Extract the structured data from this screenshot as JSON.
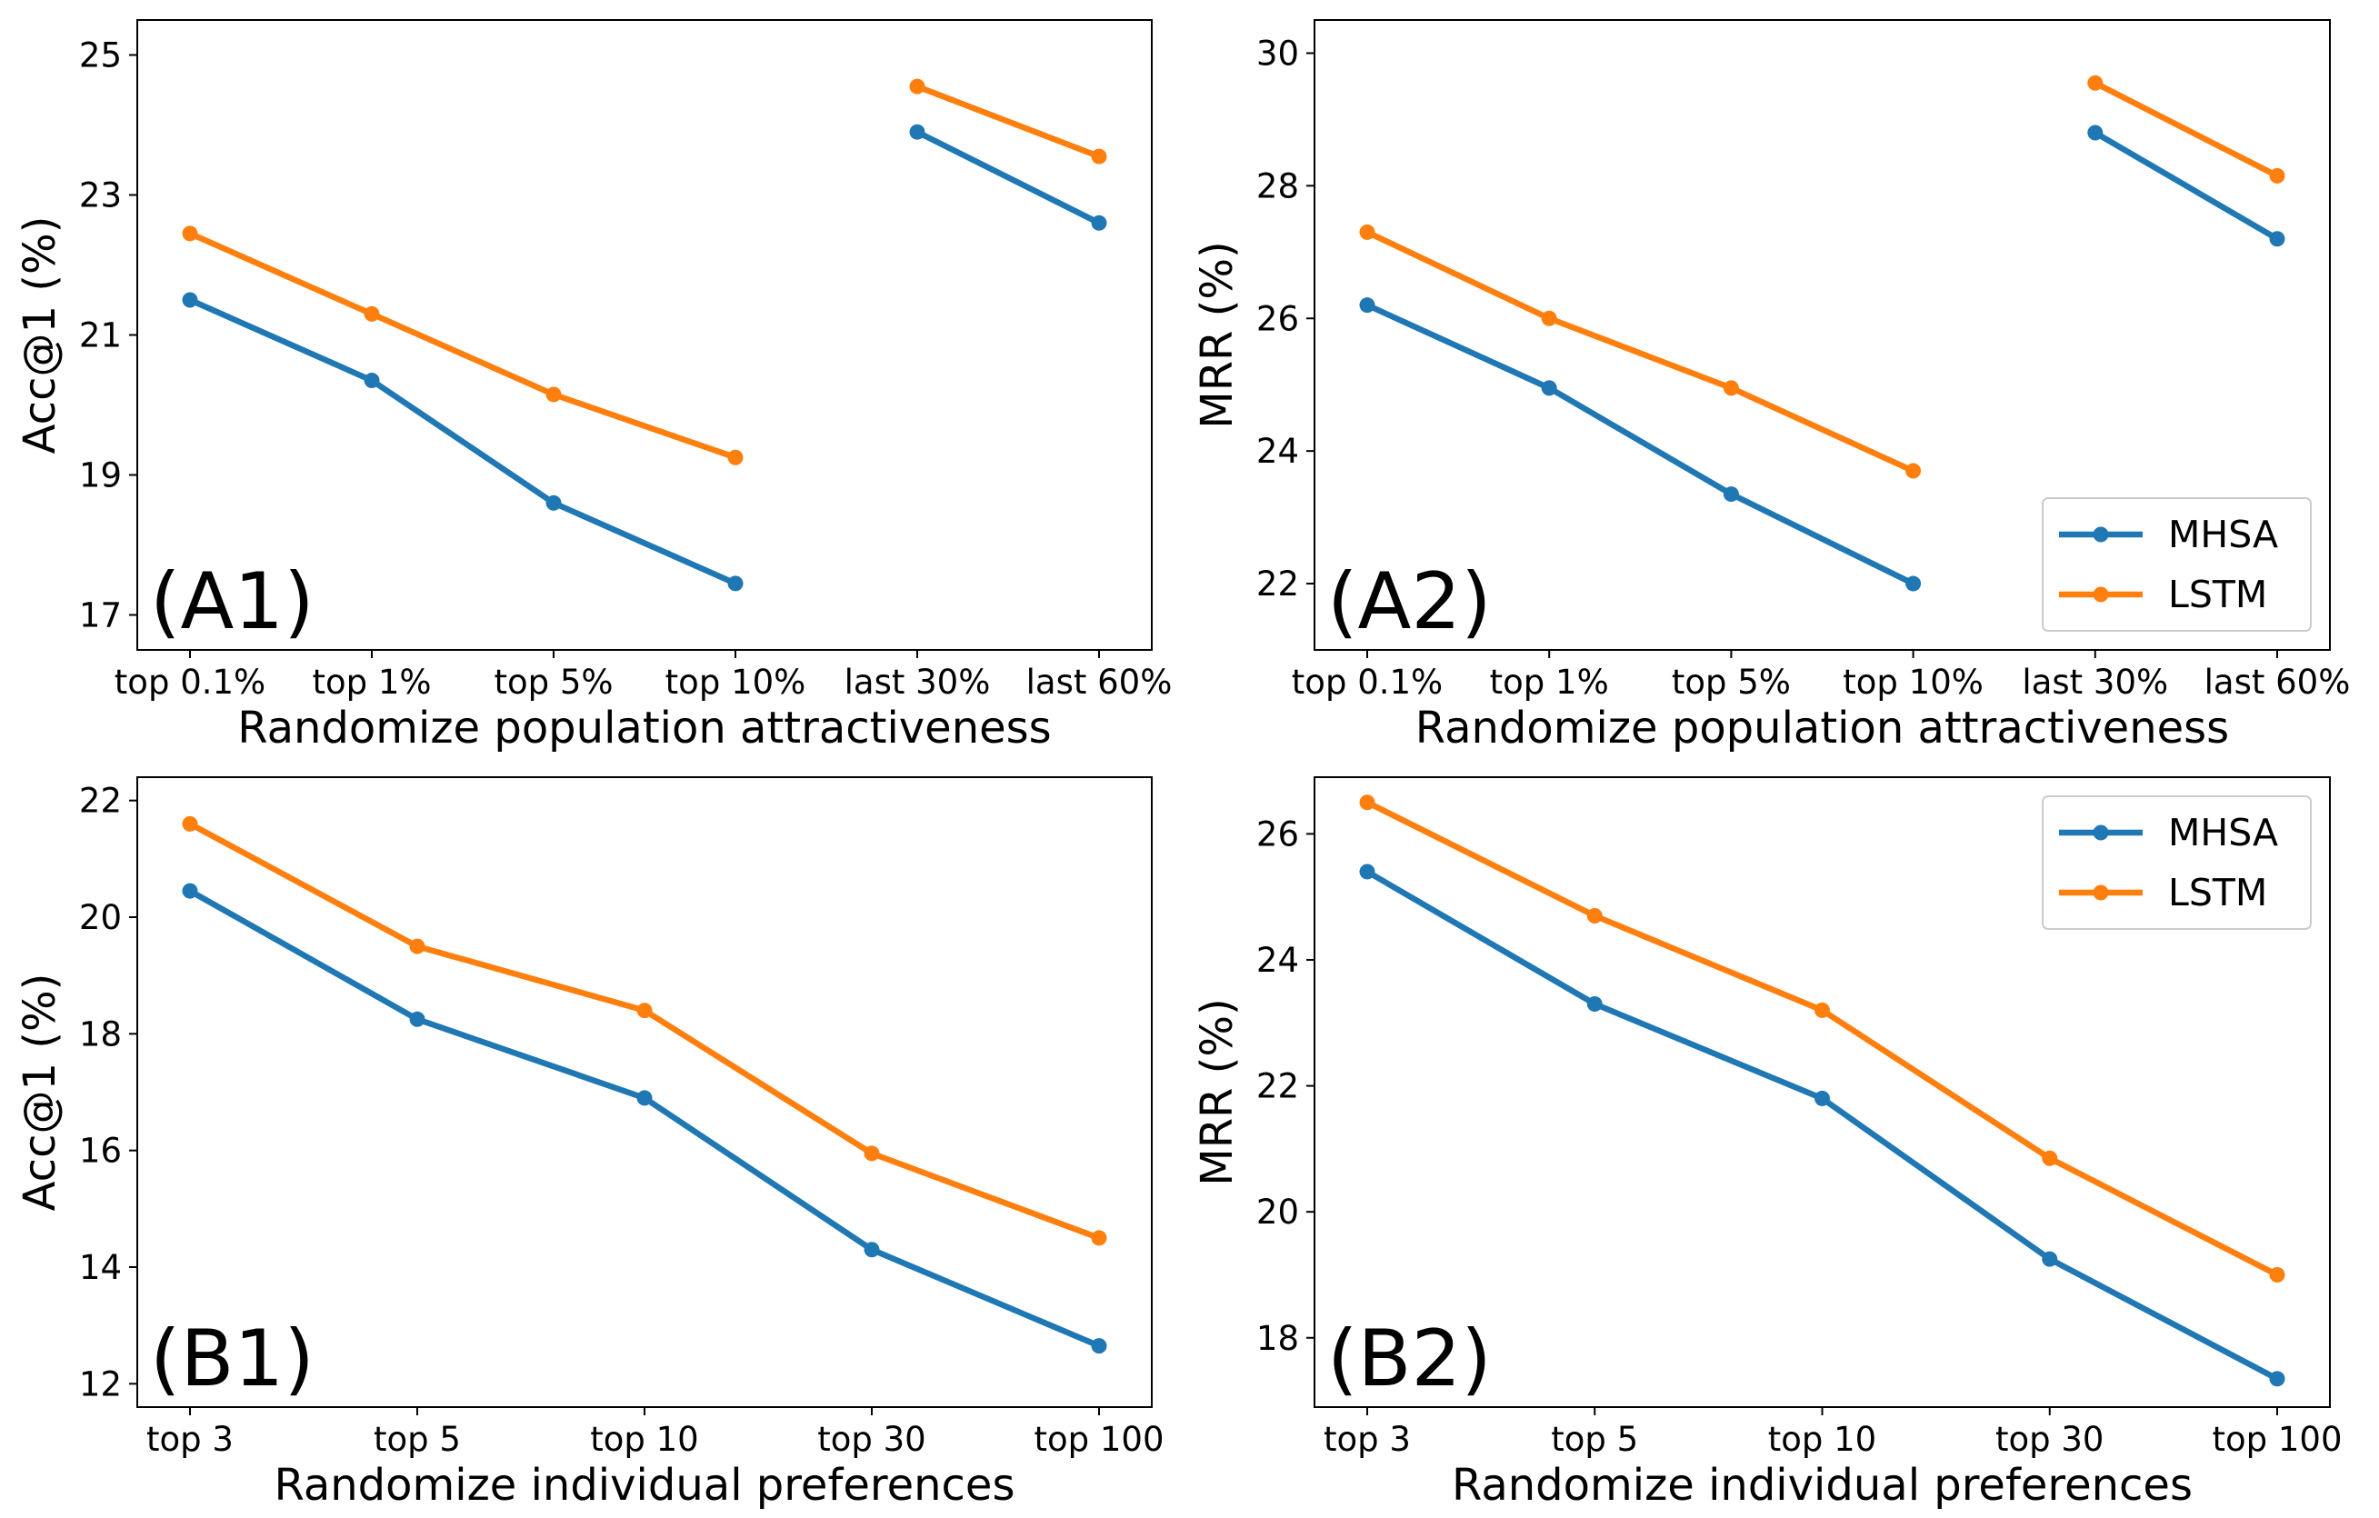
{
  "colors": {
    "mhsa": "#1f77b4",
    "lstm": "#ff7f0e",
    "axes": "#000000",
    "background": "#ffffff"
  },
  "chart_data": [
    {
      "type": "line",
      "panel_label": "(A1)",
      "xlabel": "Randomize population attractiveness",
      "ylabel": "Acc@1 (%)",
      "categories": [
        "top 0.1%",
        "top 1%",
        "top 5%",
        "top 10%",
        "last 30%",
        "last 60%"
      ],
      "segments": [
        [
          0,
          3
        ],
        [
          4,
          5
        ]
      ],
      "yticks": [
        17,
        19,
        21,
        23,
        25
      ],
      "ylim": [
        16.5,
        25.5
      ],
      "grid": false,
      "legend": null,
      "series": [
        {
          "name": "MHSA",
          "values": [
            21.5,
            20.35,
            18.6,
            17.45,
            23.9,
            22.6
          ]
        },
        {
          "name": "LSTM",
          "values": [
            22.45,
            21.3,
            20.15,
            19.25,
            24.55,
            23.55
          ]
        }
      ]
    },
    {
      "type": "line",
      "panel_label": "(A2)",
      "xlabel": "Randomize population attractiveness",
      "ylabel": "MRR (%)",
      "categories": [
        "top 0.1%",
        "top 1%",
        "top 5%",
        "top 10%",
        "last 30%",
        "last 60%"
      ],
      "segments": [
        [
          0,
          3
        ],
        [
          4,
          5
        ]
      ],
      "yticks": [
        22,
        24,
        26,
        28,
        30
      ],
      "ylim": [
        21.0,
        30.5
      ],
      "grid": false,
      "legend": "lower-right",
      "series": [
        {
          "name": "MHSA",
          "values": [
            26.2,
            24.95,
            23.35,
            22.0,
            28.8,
            27.2
          ]
        },
        {
          "name": "LSTM",
          "values": [
            27.3,
            26.0,
            24.95,
            23.7,
            29.55,
            28.15
          ]
        }
      ]
    },
    {
      "type": "line",
      "panel_label": "(B1)",
      "xlabel": "Randomize individual preferences",
      "ylabel": "Acc@1 (%)",
      "categories": [
        "top 3",
        "top 5",
        "top 10",
        "top 30",
        "top 100"
      ],
      "segments": [
        [
          0,
          4
        ]
      ],
      "yticks": [
        12,
        14,
        16,
        18,
        20,
        22
      ],
      "ylim": [
        11.6,
        22.4
      ],
      "grid": false,
      "legend": null,
      "series": [
        {
          "name": "MHSA",
          "values": [
            20.45,
            18.25,
            16.9,
            14.3,
            12.65
          ]
        },
        {
          "name": "LSTM",
          "values": [
            21.6,
            19.5,
            18.4,
            15.95,
            14.5
          ]
        }
      ]
    },
    {
      "type": "line",
      "panel_label": "(B2)",
      "xlabel": "Randomize individual preferences",
      "ylabel": "MRR (%)",
      "categories": [
        "top 3",
        "top 5",
        "top 10",
        "top 30",
        "top 100"
      ],
      "segments": [
        [
          0,
          4
        ]
      ],
      "yticks": [
        18,
        20,
        22,
        24,
        26
      ],
      "ylim": [
        16.9,
        26.9
      ],
      "grid": false,
      "legend": "upper-right",
      "series": [
        {
          "name": "MHSA",
          "values": [
            25.4,
            23.3,
            21.8,
            19.25,
            17.35
          ]
        },
        {
          "name": "LSTM",
          "values": [
            26.5,
            24.7,
            23.2,
            20.85,
            19.0
          ]
        }
      ]
    }
  ]
}
